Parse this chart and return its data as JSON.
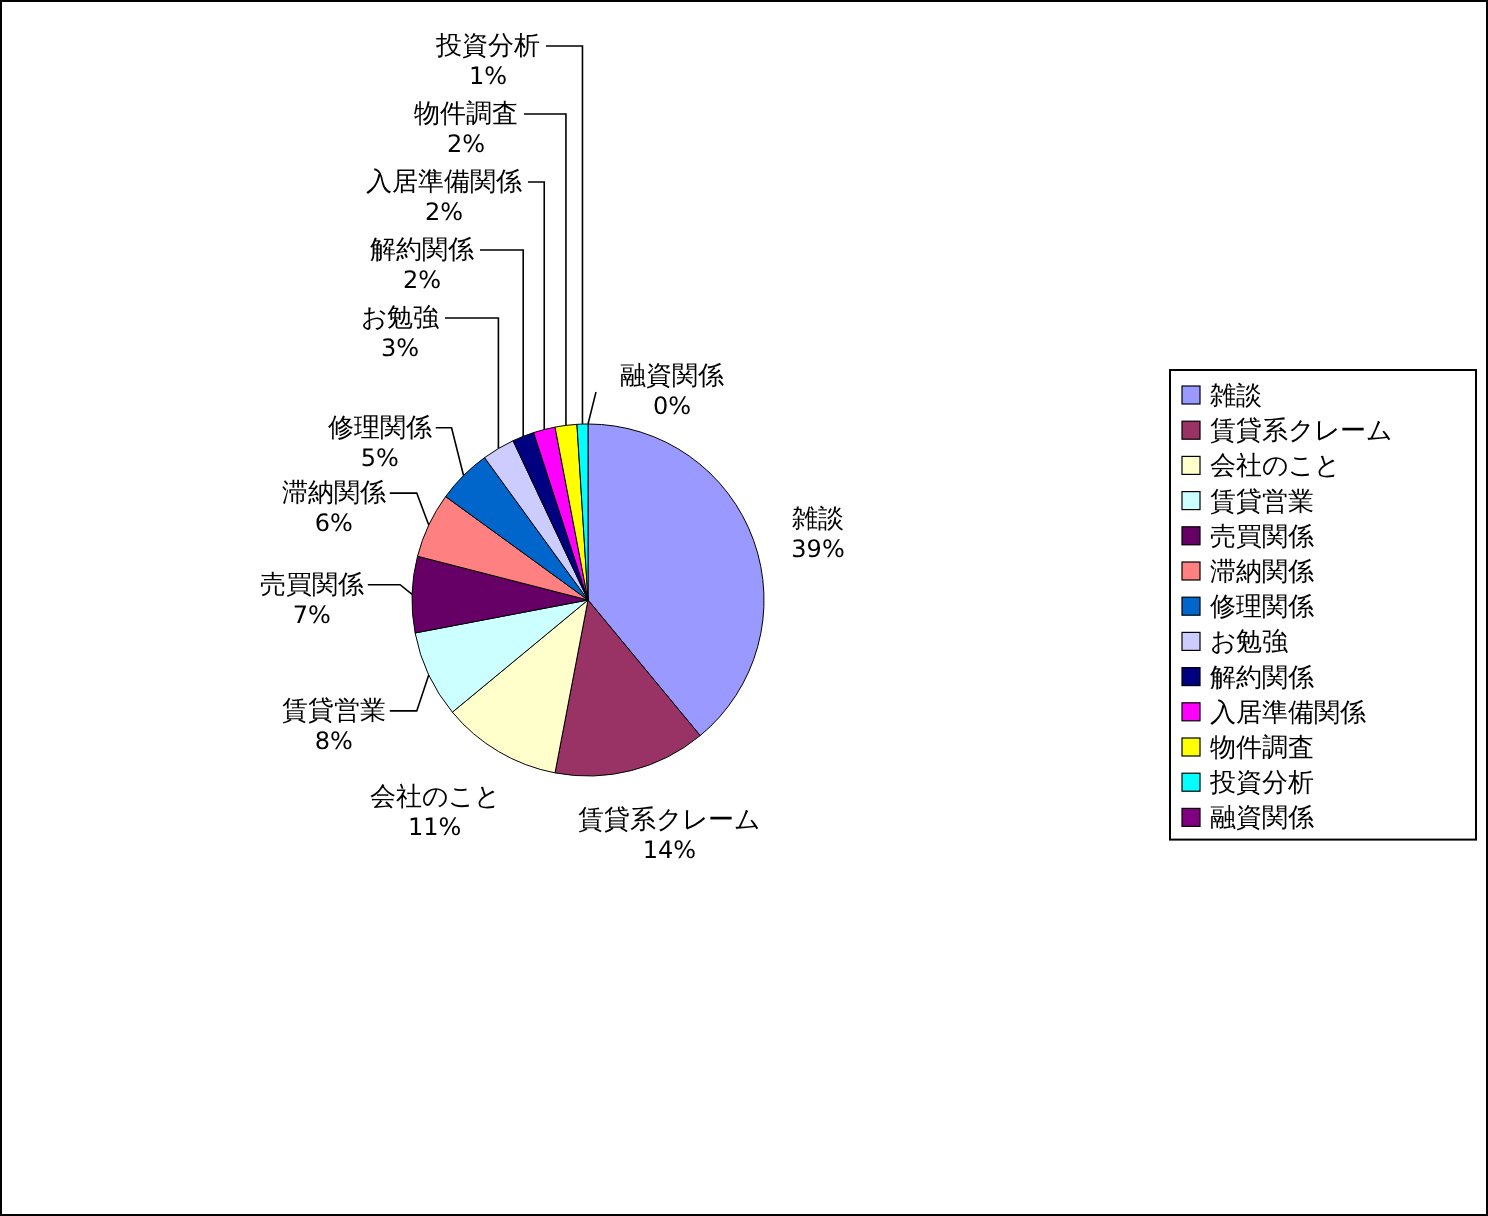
{
  "chart_data": {
    "type": "pie",
    "categories": [
      "雑談",
      "賃貸系クレーム",
      "会社のこと",
      "賃貸営業",
      "売買関係",
      "滞納関係",
      "修理関係",
      "お勉強",
      "解約関係",
      "入居準備関係",
      "物件調査",
      "投資分析",
      "融資関係"
    ],
    "values": [
      39,
      14,
      11,
      8,
      7,
      6,
      5,
      3,
      2,
      2,
      2,
      1,
      0
    ],
    "colors": [
      "#9999ff",
      "#993366",
      "#ffffcc",
      "#ccffff",
      "#660066",
      "#ff8080",
      "#0066cc",
      "#ccccff",
      "#000080",
      "#ff00ff",
      "#ffff00",
      "#00ffff",
      "#800080"
    ],
    "value_labels": [
      "39%",
      "14%",
      "11%",
      "8%",
      "7%",
      "6%",
      "5%",
      "3%",
      "2%",
      "2%",
      "2%",
      "1%",
      "0%"
    ],
    "legend": "right"
  }
}
